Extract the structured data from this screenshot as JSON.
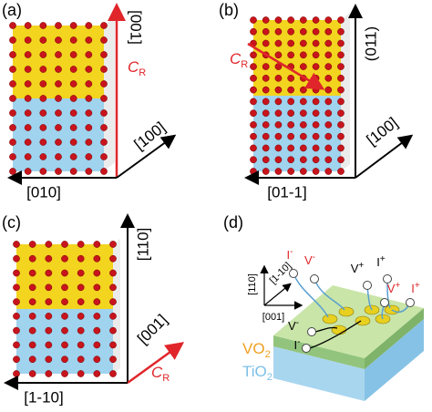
{
  "panels": [
    {
      "label": "(a)",
      "axes": [
        "[001]",
        "[100]",
        "[010]"
      ],
      "c_r": {
        "symbol": "C",
        "subscript": "R"
      }
    },
    {
      "label": "(b)",
      "axes": [
        "(011)",
        "[100]",
        "[01-1]"
      ],
      "c_r": {
        "symbol": "C",
        "subscript": "R"
      }
    },
    {
      "label": "(c)",
      "axes": [
        "[110]",
        "[001]",
        "[1-10]"
      ],
      "c_r": {
        "symbol": "C",
        "subscript": "R"
      }
    },
    {
      "label": "(d)",
      "axes": [
        "[110]",
        "[1-10]",
        "[001]"
      ],
      "layers": [
        {
          "name": "VO",
          "subscript": "2"
        },
        {
          "name": "TiO",
          "subscript": "2"
        }
      ],
      "probes": [
        {
          "symbol": "I",
          "sign": "-"
        },
        {
          "symbol": "V",
          "sign": "-"
        },
        {
          "symbol": "V",
          "sign": "+"
        },
        {
          "symbol": "I",
          "sign": "+"
        },
        {
          "symbol": "V",
          "sign": "+"
        },
        {
          "symbol": "I",
          "sign": "+"
        },
        {
          "symbol": "V",
          "sign": "-"
        },
        {
          "symbol": "I",
          "sign": "-"
        }
      ]
    }
  ]
}
